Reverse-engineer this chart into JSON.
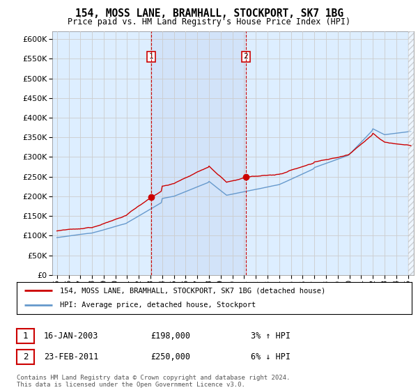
{
  "title": "154, MOSS LANE, BRAMHALL, STOCKPORT, SK7 1BG",
  "subtitle": "Price paid vs. HM Land Registry's House Price Index (HPI)",
  "yticks": [
    0,
    50000,
    100000,
    150000,
    200000,
    250000,
    300000,
    350000,
    400000,
    450000,
    500000,
    550000,
    600000
  ],
  "ylim": [
    0,
    620000
  ],
  "sale1_date_num": 2003.04,
  "sale1_price": 198000,
  "sale1_label": "16-JAN-2003",
  "sale1_amount": "£198,000",
  "sale1_hpi": "3% ↑ HPI",
  "sale2_date_num": 2011.14,
  "sale2_price": 250000,
  "sale2_label": "23-FEB-2011",
  "sale2_amount": "£250,000",
  "sale2_hpi": "6% ↓ HPI",
  "legend_line1": "154, MOSS LANE, BRAMHALL, STOCKPORT, SK7 1BG (detached house)",
  "legend_line2": "HPI: Average price, detached house, Stockport",
  "footer": "Contains HM Land Registry data © Crown copyright and database right 2024.\nThis data is licensed under the Open Government Licence v3.0.",
  "line_color_red": "#cc0000",
  "line_color_blue": "#6699cc",
  "background_plot": "#ddeeff",
  "shade_color": "#ddeeff",
  "vline_color": "#cc0000",
  "grid_color": "#cccccc",
  "xlim_left": 1994.6,
  "xlim_right": 2025.5
}
